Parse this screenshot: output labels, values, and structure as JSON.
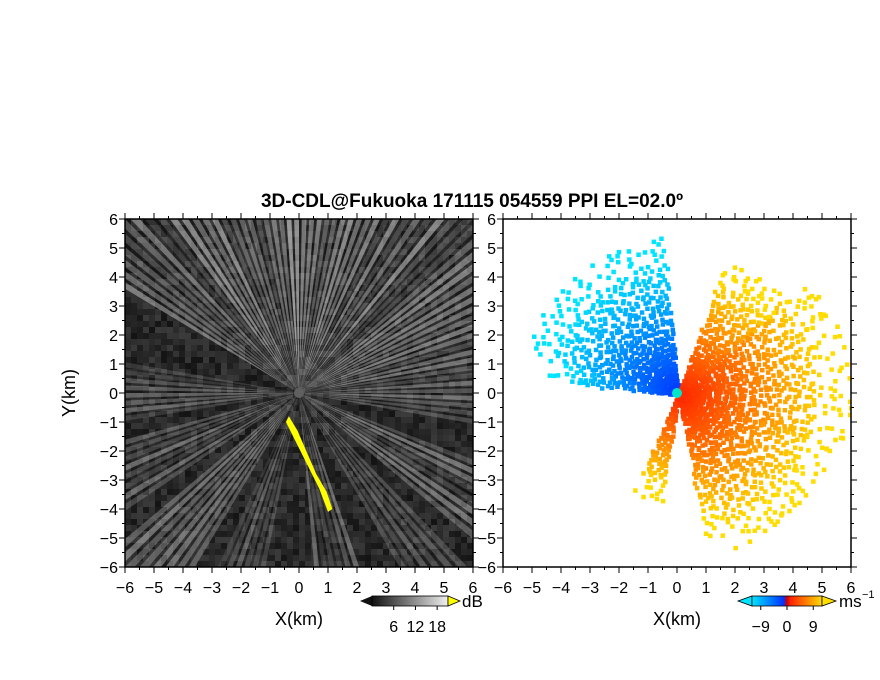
{
  "chart_data": {
    "title": "3D-CDL@Fukuoka 171115 054559 PPI EL=02.0º",
    "panels": [
      {
        "type": "heatmap",
        "quantity": "SNR",
        "colormap": "grayscale",
        "xlabel": "X(km)",
        "ylabel": "Y(km)",
        "xlim": [
          -6,
          6
        ],
        "ylim": [
          -6,
          6
        ],
        "x_ticks": [
          "−6",
          "−5",
          "−4",
          "−3",
          "−2",
          "−1",
          "0",
          "1",
          "2",
          "3",
          "4",
          "5",
          "6"
        ],
        "y_ticks": [
          "6",
          "5",
          "4",
          "3",
          "2",
          "1",
          "0",
          "−1",
          "−2",
          "−3",
          "−4",
          "−5",
          "−6"
        ],
        "colorbar": {
          "unit": "dB",
          "ticks": [
            "6",
            "12",
            "18"
          ],
          "tick_values": [
            6,
            12,
            18
          ],
          "range": [
            0,
            21
          ]
        },
        "highlight_region": {
          "color": "#ffff00",
          "description_values": {
            "x_km": [
              -0.5,
              1.2
            ],
            "y_km": [
              -4.1,
              -0.8
            ]
          }
        }
      },
      {
        "type": "heatmap",
        "quantity": "Doppler velocity",
        "colormap": "diverging cyan-blue-red-yellow",
        "xlabel": "X(km)",
        "ylabel": "",
        "xlim": [
          -6,
          6
        ],
        "ylim": [
          -6,
          6
        ],
        "x_ticks": [
          "−6",
          "−5",
          "−4",
          "−3",
          "−2",
          "−1",
          "0",
          "1",
          "2",
          "3",
          "4",
          "5",
          "6"
        ],
        "y_ticks": [
          "6",
          "5",
          "4",
          "3",
          "2",
          "1",
          "0",
          "−1",
          "−2",
          "−3",
          "−4",
          "−5",
          "−6"
        ],
        "colorbar": {
          "unit": "ms",
          "unit_superscript": "−1",
          "ticks": [
            "−9",
            "0",
            "9"
          ],
          "tick_values": [
            -9,
            0,
            9
          ],
          "range": [
            -12,
            12
          ]
        }
      }
    ]
  },
  "colors": {
    "snr_low": "#1a1a1a",
    "snr_high": "#f5f5f5",
    "snr_flag": "#ffff00",
    "vel_neg_far": "#00e5ff",
    "vel_neg_near": "#0033ff",
    "vel_pos_near": "#ff2200",
    "vel_pos_far": "#ffdd00"
  }
}
